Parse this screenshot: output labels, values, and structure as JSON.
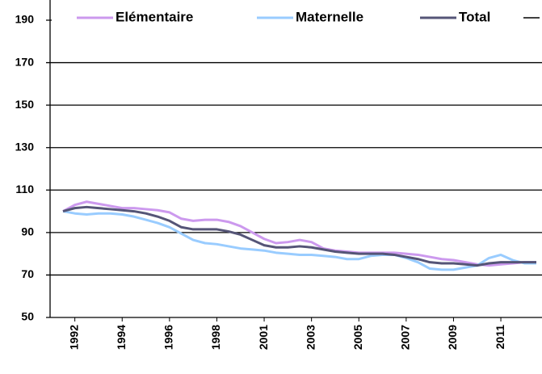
{
  "chart_data": {
    "type": "line",
    "categories": [
      null,
      "1992",
      null,
      null,
      null,
      "1994",
      null,
      null,
      null,
      "1996",
      null,
      null,
      null,
      "1998",
      null,
      null,
      null,
      "2001",
      null,
      null,
      null,
      "2003",
      null,
      null,
      null,
      "2005",
      null,
      null,
      null,
      "2007",
      null,
      null,
      null,
      "2009",
      null,
      null,
      null,
      "2011",
      null,
      null,
      null
    ],
    "series": [
      {
        "name": "Elémentaire",
        "color": "#cc99ee",
        "values": [
          100,
          103,
          104.5,
          103.5,
          102.5,
          101.5,
          101.5,
          101,
          100.5,
          99.5,
          96.5,
          95.5,
          96,
          96,
          95,
          93,
          90,
          87,
          85,
          85.5,
          86.5,
          85.5,
          82.5,
          81.5,
          81,
          80.5,
          80.5,
          80.5,
          80.5,
          80,
          79.5,
          78.5,
          77.5,
          77,
          76,
          75,
          74.5,
          75,
          75.5,
          76,
          76
        ]
      },
      {
        "name": "Maternelle",
        "color": "#99ccff",
        "values": [
          100,
          99,
          98.5,
          99,
          99,
          98.5,
          97.5,
          96,
          94.5,
          92.5,
          89.5,
          86.5,
          85,
          84.5,
          83.5,
          82.5,
          82,
          81.5,
          80.5,
          80,
          79.5,
          79.5,
          79,
          78.5,
          77.5,
          77.5,
          79,
          79.5,
          79.5,
          78,
          76,
          73,
          72.5,
          72.5,
          73.5,
          74.5,
          78,
          79.5,
          77,
          75.5,
          75.5
        ]
      },
      {
        "name": "Total",
        "color": "#555577",
        "values": [
          100,
          101.5,
          102,
          101.5,
          101,
          100.5,
          100,
          99,
          97.5,
          95.5,
          92.5,
          91.5,
          91.5,
          91.5,
          90.5,
          89,
          86.5,
          84,
          83,
          83,
          83.5,
          83,
          82,
          81,
          80.5,
          80,
          80,
          80,
          79.5,
          78.5,
          77.5,
          76,
          75.5,
          75.5,
          75,
          74.5,
          75.5,
          76,
          76,
          76,
          76
        ]
      }
    ],
    "ylim": [
      50,
      190
    ],
    "yticks": [
      50,
      70,
      90,
      110,
      130,
      150,
      170,
      190
    ],
    "grid": true
  }
}
